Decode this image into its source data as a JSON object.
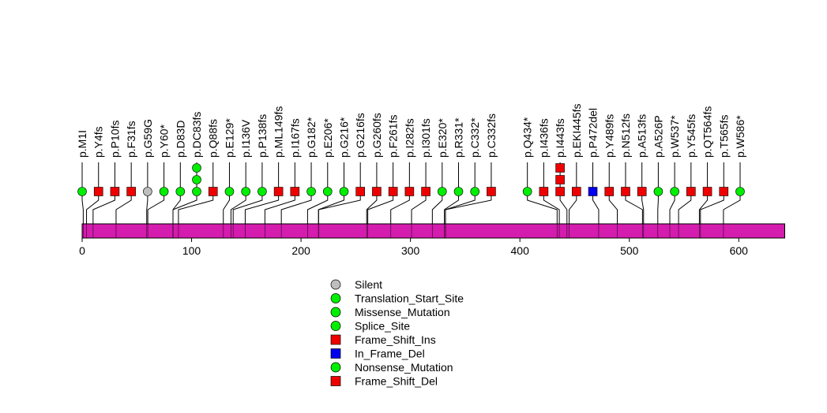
{
  "chart_data": {
    "type": "lollipop",
    "title": "",
    "xlabel": "",
    "ylabel": "",
    "xlim": [
      0,
      642
    ],
    "ticks": [
      0,
      100,
      200,
      300,
      400,
      500,
      600
    ],
    "colors": {
      "bar": "#d41cae",
      "Silent": "#bebebe",
      "Translation_Start_Site": "#00ee00",
      "Missense_Mutation": "#00ee00",
      "Splice_Site": "#00ee00",
      "Frame_Shift_Ins": "#ee0000",
      "In_Frame_Del": "#0000ee",
      "Nonsense_Mutation": "#00ee00",
      "Frame_Shift_Del": "#ee0000"
    },
    "legend": [
      {
        "label": "Silent",
        "shape": "circle",
        "color": "#bebebe"
      },
      {
        "label": "Translation_Start_Site",
        "shape": "circle",
        "color": "#00ee00"
      },
      {
        "label": "Missense_Mutation",
        "shape": "circle",
        "color": "#00ee00"
      },
      {
        "label": "Splice_Site",
        "shape": "circle",
        "color": "#00ee00"
      },
      {
        "label": "Frame_Shift_Ins",
        "shape": "square",
        "color": "#ee0000"
      },
      {
        "label": "In_Frame_Del",
        "shape": "square",
        "color": "#0000ee"
      },
      {
        "label": "Nonsense_Mutation",
        "shape": "circle",
        "color": "#00ee00"
      },
      {
        "label": "Frame_Shift_Del",
        "shape": "square",
        "color": "#ee0000"
      }
    ],
    "mutations": [
      {
        "label": "p.M1I",
        "position": 1,
        "markers": [
          {
            "shape": "circle",
            "color": "#00ee00"
          }
        ]
      },
      {
        "label": "p.Y4fs",
        "position": 4,
        "markers": [
          {
            "shape": "square",
            "color": "#ee0000"
          }
        ]
      },
      {
        "label": "p.P10fs",
        "position": 10,
        "markers": [
          {
            "shape": "square",
            "color": "#ee0000"
          }
        ]
      },
      {
        "label": "p.F31fs",
        "position": 31,
        "markers": [
          {
            "shape": "square",
            "color": "#ee0000"
          }
        ]
      },
      {
        "label": "p.G59G",
        "position": 59,
        "markers": [
          {
            "shape": "circle",
            "color": "#bebebe"
          }
        ]
      },
      {
        "label": "p.Y60*",
        "position": 60,
        "markers": [
          {
            "shape": "circle",
            "color": "#00ee00"
          }
        ]
      },
      {
        "label": "p.D83D",
        "position": 83,
        "markers": [
          {
            "shape": "circle",
            "color": "#00ee00"
          }
        ]
      },
      {
        "label": "p.DC83fs",
        "position": 83,
        "markers": [
          {
            "shape": "circle",
            "color": "#00ee00"
          },
          {
            "shape": "circle",
            "color": "#00ee00"
          },
          {
            "shape": "circle",
            "color": "#00ee00"
          }
        ]
      },
      {
        "label": "p.Q88fs",
        "position": 88,
        "markers": [
          {
            "shape": "square",
            "color": "#ee0000"
          }
        ]
      },
      {
        "label": "p.E129*",
        "position": 129,
        "markers": [
          {
            "shape": "circle",
            "color": "#00ee00"
          }
        ]
      },
      {
        "label": "p.I136V",
        "position": 136,
        "markers": [
          {
            "shape": "circle",
            "color": "#00ee00"
          }
        ]
      },
      {
        "label": "p.P138fs",
        "position": 138,
        "markers": [
          {
            "shape": "circle",
            "color": "#00ee00"
          }
        ]
      },
      {
        "label": "p.ML149fs",
        "position": 149,
        "markers": [
          {
            "shape": "square",
            "color": "#ee0000"
          }
        ]
      },
      {
        "label": "p.I167fs",
        "position": 167,
        "markers": [
          {
            "shape": "square",
            "color": "#ee0000"
          }
        ]
      },
      {
        "label": "p.G182*",
        "position": 182,
        "markers": [
          {
            "shape": "circle",
            "color": "#00ee00"
          }
        ]
      },
      {
        "label": "p.E206*",
        "position": 206,
        "markers": [
          {
            "shape": "circle",
            "color": "#00ee00"
          }
        ]
      },
      {
        "label": "p.G216*",
        "position": 216,
        "markers": [
          {
            "shape": "circle",
            "color": "#00ee00"
          }
        ]
      },
      {
        "label": "p.G216fs",
        "position": 216,
        "markers": [
          {
            "shape": "square",
            "color": "#ee0000"
          }
        ]
      },
      {
        "label": "p.G260fs",
        "position": 260,
        "markers": [
          {
            "shape": "square",
            "color": "#ee0000"
          }
        ]
      },
      {
        "label": "p.F261fs",
        "position": 261,
        "markers": [
          {
            "shape": "square",
            "color": "#ee0000"
          }
        ]
      },
      {
        "label": "p.I282fs",
        "position": 282,
        "markers": [
          {
            "shape": "square",
            "color": "#ee0000"
          }
        ]
      },
      {
        "label": "p.I301fs",
        "position": 301,
        "markers": [
          {
            "shape": "square",
            "color": "#ee0000"
          }
        ]
      },
      {
        "label": "p.E320*",
        "position": 320,
        "markers": [
          {
            "shape": "circle",
            "color": "#00ee00"
          }
        ]
      },
      {
        "label": "p.R331*",
        "position": 331,
        "markers": [
          {
            "shape": "circle",
            "color": "#00ee00"
          }
        ]
      },
      {
        "label": "p.C332*",
        "position": 332,
        "markers": [
          {
            "shape": "circle",
            "color": "#00ee00"
          }
        ]
      },
      {
        "label": "p.C332fs",
        "position": 332,
        "markers": [
          {
            "shape": "square",
            "color": "#ee0000"
          }
        ]
      },
      {
        "label": "p.Q434*",
        "position": 434,
        "markers": [
          {
            "shape": "circle",
            "color": "#00ee00"
          }
        ]
      },
      {
        "label": "p.I436fs",
        "position": 436,
        "markers": [
          {
            "shape": "square",
            "color": "#ee0000"
          }
        ]
      },
      {
        "label": "p.I443fs",
        "position": 443,
        "markers": [
          {
            "shape": "square",
            "color": "#ee0000"
          },
          {
            "shape": "square",
            "color": "#ee0000"
          },
          {
            "shape": "square",
            "color": "#ee0000"
          }
        ]
      },
      {
        "label": "p.EKI445fs",
        "position": 445,
        "markers": [
          {
            "shape": "square",
            "color": "#ee0000"
          }
        ]
      },
      {
        "label": "p.P472del",
        "position": 472,
        "markers": [
          {
            "shape": "square",
            "color": "#0000ee"
          }
        ]
      },
      {
        "label": "p.Y489fs",
        "position": 489,
        "markers": [
          {
            "shape": "square",
            "color": "#ee0000"
          }
        ]
      },
      {
        "label": "p.N512fs",
        "position": 512,
        "markers": [
          {
            "shape": "square",
            "color": "#ee0000"
          }
        ]
      },
      {
        "label": "p.A513fs",
        "position": 513,
        "markers": [
          {
            "shape": "square",
            "color": "#ee0000"
          }
        ]
      },
      {
        "label": "p.A526P",
        "position": 526,
        "markers": [
          {
            "shape": "circle",
            "color": "#00ee00"
          }
        ]
      },
      {
        "label": "p.W537*",
        "position": 537,
        "markers": [
          {
            "shape": "circle",
            "color": "#00ee00"
          }
        ]
      },
      {
        "label": "p.Y545fs",
        "position": 545,
        "markers": [
          {
            "shape": "square",
            "color": "#ee0000"
          }
        ]
      },
      {
        "label": "p.QT564fs",
        "position": 564,
        "markers": [
          {
            "shape": "square",
            "color": "#ee0000"
          }
        ]
      },
      {
        "label": "p.T565fs",
        "position": 565,
        "markers": [
          {
            "shape": "square",
            "color": "#ee0000"
          }
        ]
      },
      {
        "label": "p.W586*",
        "position": 586,
        "markers": [
          {
            "shape": "circle",
            "color": "#00ee00"
          }
        ]
      }
    ]
  }
}
